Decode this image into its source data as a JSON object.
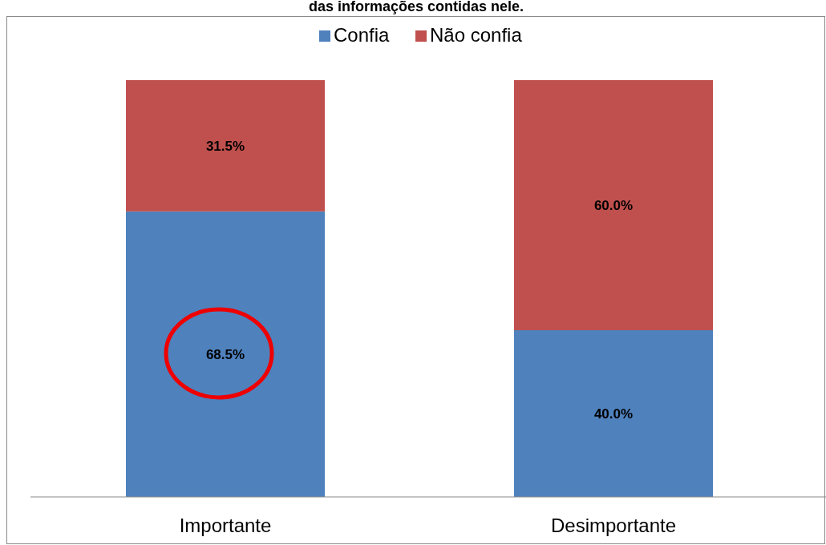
{
  "chart_data": {
    "type": "bar",
    "title": "das informações contidas nele.",
    "categories": [
      "Importante",
      "Desimportante"
    ],
    "stacked": true,
    "series": [
      {
        "name": "Confia",
        "color": "#4f81bd",
        "values": [
          68.5,
          40.0
        ],
        "value_labels": [
          "68.5%",
          "40.0%"
        ]
      },
      {
        "name": "Não confia",
        "color": "#c0504d",
        "values": [
          31.5,
          60.0
        ],
        "value_labels": [
          "31.5%",
          "60.0%"
        ]
      }
    ],
    "ylim": [
      0,
      100
    ],
    "tick_labels": "x",
    "legend": "top"
  }
}
